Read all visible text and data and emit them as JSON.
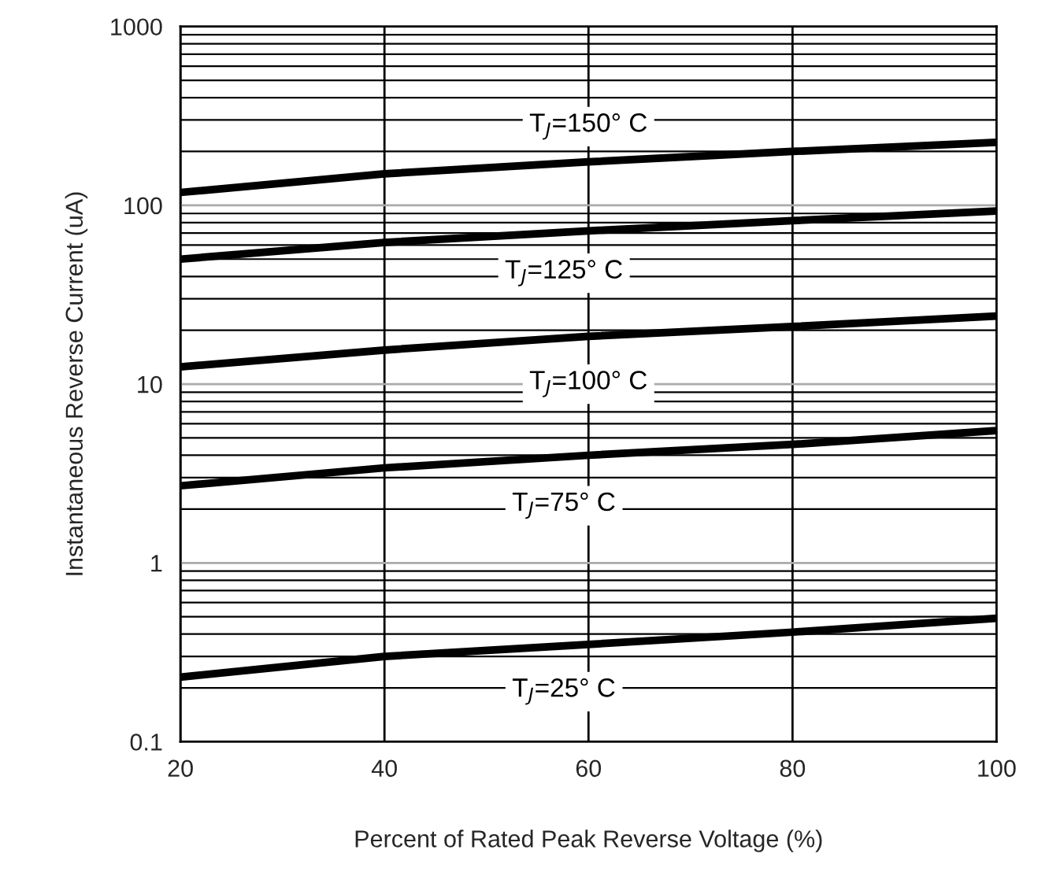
{
  "chart_data": {
    "type": "line",
    "xlabel": "Percent of Rated Peak Reverse Voltage (%)",
    "ylabel": "Instantaneous Reverse Current (uA)",
    "x": [
      20,
      40,
      60,
      80,
      100
    ],
    "series": [
      {
        "name": "T$_{J}$=150° C",
        "color": "#000000",
        "values": [
          118,
          150,
          175,
          200,
          225
        ]
      },
      {
        "name": "T$_{J}$=125° C",
        "color": "#000000",
        "values": [
          50,
          62,
          72,
          82,
          93
        ]
      },
      {
        "name": "T$_{J}$=100° C",
        "color": "#000000",
        "values": [
          12.5,
          15.5,
          18.5,
          21,
          24
        ]
      },
      {
        "name": "T$_{J}$=75° C",
        "color": "#000000",
        "values": [
          2.7,
          3.4,
          4.0,
          4.6,
          5.5
        ]
      },
      {
        "name": "T$_{J}$=25° C",
        "color": "#000000",
        "values": [
          0.23,
          0.3,
          0.35,
          0.41,
          0.49
        ]
      }
    ],
    "log": "y",
    "xlim": [
      20,
      100
    ],
    "ylim": [
      0.1,
      1000
    ],
    "xticks": [
      20,
      40,
      60,
      80,
      100
    ],
    "yticks": [
      {
        "value": 0.1,
        "label": "0.1"
      },
      1,
      10,
      100,
      1000
    ],
    "grid": true,
    "line_style": "solid",
    "marker": "none"
  }
}
